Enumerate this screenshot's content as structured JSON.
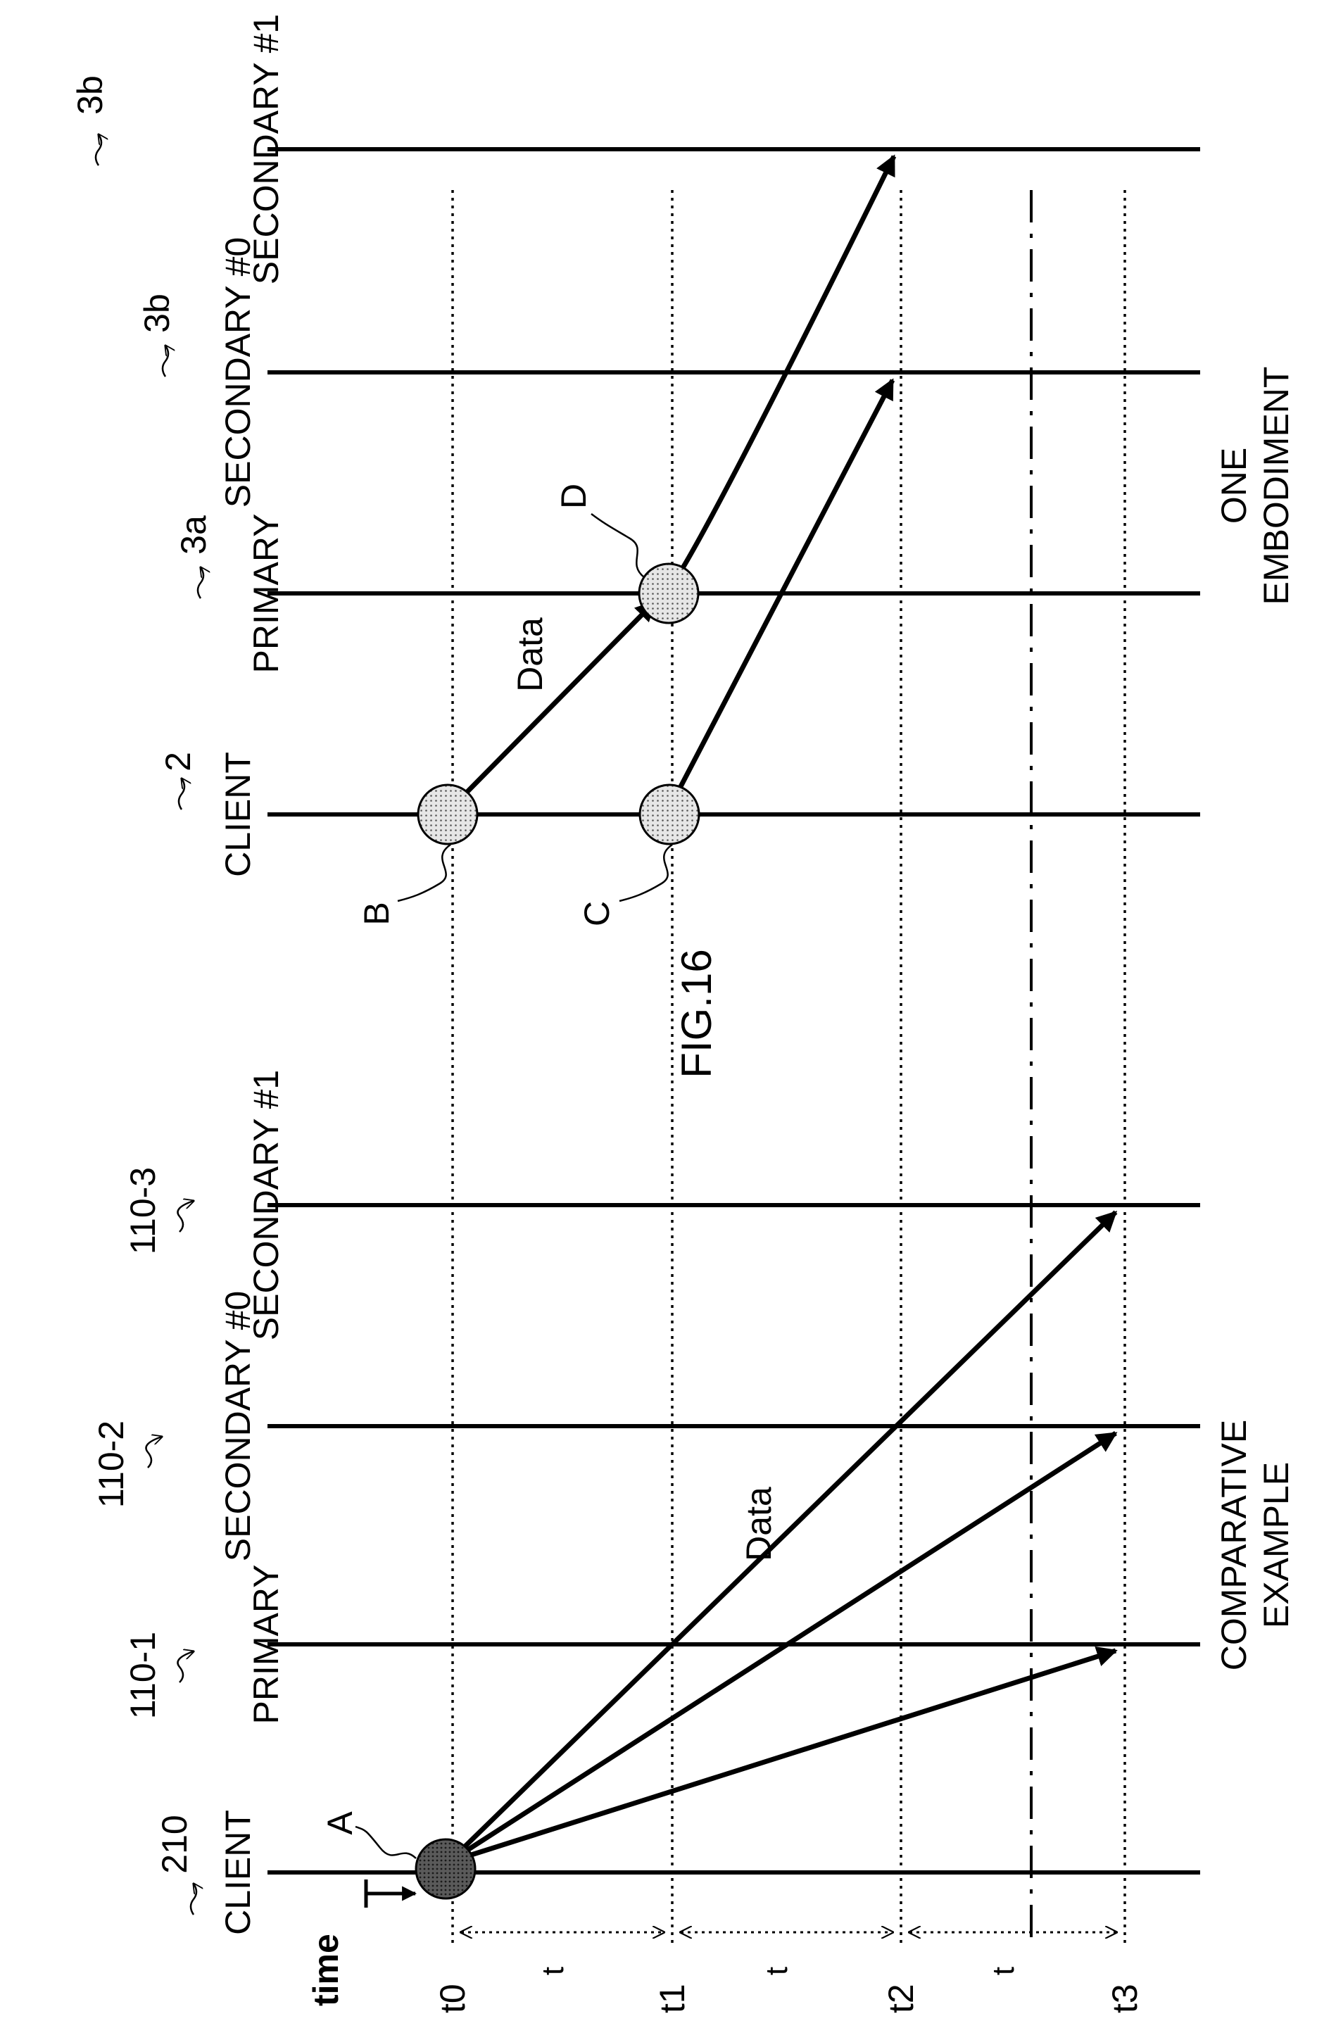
{
  "figure": {
    "title": "FIG.16",
    "time_label": "time",
    "interval_label": "t",
    "time_marks": [
      "t0",
      "t1",
      "t2",
      "t3"
    ],
    "comparative": {
      "caption_line1": "COMPARATIVE",
      "caption_line2": "EXAMPLE",
      "data_label": "Data",
      "point_label": "A",
      "nodes": [
        {
          "ref": "210",
          "name": "CLIENT"
        },
        {
          "ref": "110-1",
          "name": "PRIMARY"
        },
        {
          "ref": "110-2",
          "name": "SECONDARY #0"
        },
        {
          "ref": "110-3",
          "name": "SECONDARY #1"
        }
      ]
    },
    "embodiment": {
      "caption_line1": "ONE",
      "caption_line2": "EMBODIMENT",
      "data_label": "Data",
      "point_labels": [
        "B",
        "C",
        "D"
      ],
      "nodes": [
        {
          "ref": "2",
          "name": "CLIENT"
        },
        {
          "ref": "3a",
          "name": "PRIMARY"
        },
        {
          "ref": "3b",
          "name": "SECONDARY #0"
        },
        {
          "ref": "3b",
          "name": "SECONDARY #1"
        }
      ]
    }
  }
}
